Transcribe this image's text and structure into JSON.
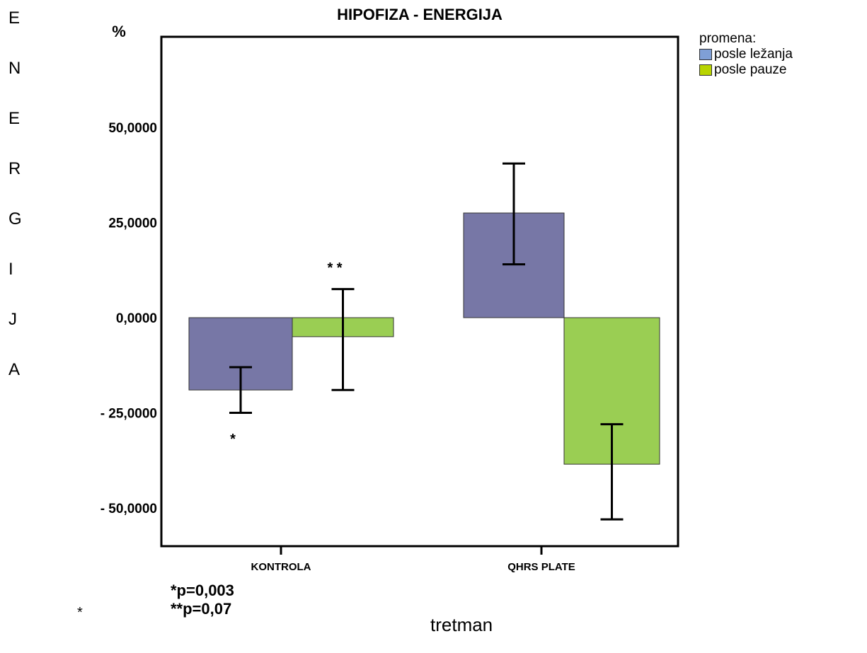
{
  "chart_data": {
    "type": "bar",
    "title": "HIPOFIZA - ENERGIJA",
    "y_unit_label": "%",
    "ylabel_letters": [
      "E",
      "N",
      "E",
      "R",
      "G",
      "I",
      "J",
      "A"
    ],
    "xlabel": "tretman",
    "categories": [
      "KONTROLA",
      "QHRS PLATE"
    ],
    "legend_title": "promena:",
    "legend_placement": "top-right",
    "ylim": [
      -60,
      70
    ],
    "y_ticks": [
      50,
      25,
      0,
      -25,
      -50
    ],
    "y_tick_labels": [
      "50,0000",
      "25,0000",
      "0,0000",
      "- 25,0000",
      "- 50,0000"
    ],
    "grid": false,
    "series": [
      {
        "name": "posle ležanja",
        "color": "#7777a6",
        "values": [
          -19.0,
          27.5
        ],
        "error_low": [
          -25.0,
          14.0
        ],
        "error_high": [
          -13.0,
          40.5
        ]
      },
      {
        "name": "posle pauze",
        "color": "#9ace53",
        "values": [
          -5.0,
          -38.5
        ],
        "error_low": [
          -19.0,
          -53.0
        ],
        "error_high": [
          7.5,
          -28.0
        ]
      }
    ],
    "legend_swatch_colors": [
      "#7f9fd6",
      "#b8d400"
    ],
    "annotations": {
      "star_single": "*",
      "star_double": "* *",
      "pvalue_1": "*p=0,003",
      "pvalue_2": "**p=0,07",
      "loose_star": "*"
    }
  }
}
